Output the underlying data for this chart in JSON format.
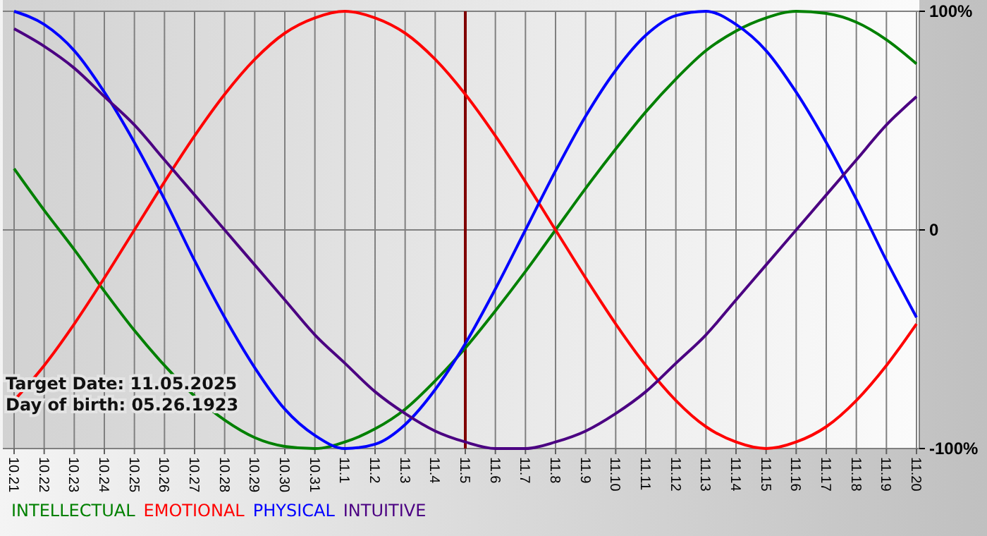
{
  "chart_data": {
    "type": "line",
    "categories": [
      "10.21",
      "10.22",
      "10.23",
      "10.24",
      "10.25",
      "10.26",
      "10.27",
      "10.28",
      "10.29",
      "10.30",
      "10.31",
      "11.1",
      "11.2",
      "11.3",
      "11.4",
      "11.5",
      "11.6",
      "11.7",
      "11.8",
      "11.9",
      "11.10",
      "11.11",
      "11.12",
      "11.13",
      "11.14",
      "11.15",
      "11.16",
      "11.17",
      "11.18",
      "11.19",
      "11.20"
    ],
    "series": [
      {
        "name": "INTELLECTUAL",
        "color": "#008000",
        "values": [
          28,
          9,
          -9,
          -28,
          -46,
          -62,
          -76,
          -87,
          -95,
          -99,
          -100,
          -97,
          -91,
          -82,
          -69,
          -54,
          -37,
          -19,
          0,
          19,
          37,
          54,
          69,
          82,
          91,
          97,
          100,
          99,
          95,
          87,
          76
        ]
      },
      {
        "name": "EMOTIONAL",
        "color": "#ff0000",
        "values": [
          -78,
          -62,
          -43,
          -22,
          0,
          22,
          43,
          62,
          78,
          90,
          97,
          100,
          97,
          90,
          78,
          62,
          43,
          22,
          0,
          -22,
          -43,
          -62,
          -78,
          -90,
          -97,
          -100,
          -97,
          -90,
          -78,
          -62,
          -43
        ]
      },
      {
        "name": "PHYSICAL",
        "color": "#0000ff",
        "values": [
          100,
          94,
          82,
          63,
          40,
          14,
          -14,
          -40,
          -63,
          -82,
          -94,
          -100,
          -98,
          -89,
          -73,
          -52,
          -27,
          0,
          27,
          52,
          73,
          89,
          98,
          100,
          94,
          82,
          63,
          40,
          14,
          -14,
          -40
        ]
      },
      {
        "name": "INTUITIVE",
        "color": "#4b0082",
        "values": [
          92,
          84,
          74,
          61,
          48,
          32,
          16,
          0,
          -16,
          -32,
          -48,
          -61,
          -74,
          -84,
          -92,
          -97,
          -100,
          -100,
          -97,
          -92,
          -84,
          -74,
          -61,
          -48,
          -32,
          -16,
          0,
          16,
          32,
          48,
          61
        ]
      }
    ],
    "ylim": [
      -100,
      100
    ],
    "yticks": [
      {
        "value": 100,
        "label": "100%"
      },
      0,
      {
        "value": -100,
        "label": "-100%"
      }
    ],
    "grid": true,
    "legend": "bottom",
    "line_style": "solid",
    "marker": "none",
    "ref_lines": [
      {
        "axis": "x",
        "value": "11.5",
        "color": "#800000"
      }
    ],
    "annotations": [
      "Target Date: 11.05.2025",
      "Day of birth: 05.26.1923"
    ]
  }
}
